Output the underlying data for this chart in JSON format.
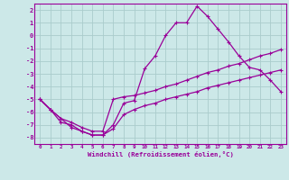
{
  "bg_color": "#cce8e8",
  "grid_color": "#aacccc",
  "line_color": "#990099",
  "xlabel": "Windchill (Refroidissement éolien,°C)",
  "x_ticks": [
    0,
    1,
    2,
    3,
    4,
    5,
    6,
    7,
    8,
    9,
    10,
    11,
    12,
    13,
    14,
    15,
    16,
    17,
    18,
    19,
    20,
    21,
    22,
    23
  ],
  "y_ticks": [
    -8,
    -7,
    -6,
    -5,
    -4,
    -3,
    -2,
    -1,
    0,
    1,
    2
  ],
  "xlim": [
    -0.5,
    23.5
  ],
  "ylim": [
    -8.5,
    2.5
  ],
  "series": [
    {
      "x": [
        0,
        1,
        2,
        3,
        4,
        5,
        6,
        7,
        8,
        9,
        10,
        11,
        12,
        13,
        14,
        15,
        16,
        17,
        18,
        19,
        20,
        21,
        22,
        23
      ],
      "y": [
        -5.0,
        -5.8,
        -6.5,
        -7.2,
        -7.5,
        -7.8,
        -7.8,
        -7.0,
        -5.3,
        -5.1,
        -2.6,
        -1.6,
        0.0,
        1.0,
        1.0,
        2.3,
        1.5,
        0.5,
        -0.5,
        -1.6,
        -2.5,
        -2.7,
        -3.5,
        -4.4
      ]
    },
    {
      "x": [
        0,
        1,
        2,
        3,
        4,
        5,
        6,
        7,
        8,
        9,
        10,
        11,
        12,
        13,
        14,
        15,
        16,
        17,
        18,
        19,
        20,
        21,
        22,
        23
      ],
      "y": [
        -5.0,
        -5.8,
        -6.5,
        -6.8,
        -7.2,
        -7.5,
        -7.5,
        -5.0,
        -4.8,
        -4.7,
        -4.5,
        -4.3,
        -4.0,
        -3.8,
        -3.5,
        -3.2,
        -2.9,
        -2.7,
        -2.4,
        -2.2,
        -1.9,
        -1.6,
        -1.4,
        -1.1
      ]
    },
    {
      "x": [
        0,
        1,
        2,
        3,
        4,
        5,
        6,
        7,
        8,
        9,
        10,
        11,
        12,
        13,
        14,
        15,
        16,
        17,
        18,
        19,
        20,
        21,
        22,
        23
      ],
      "y": [
        -5.0,
        -5.8,
        -6.8,
        -7.0,
        -7.5,
        -7.8,
        -7.8,
        -7.3,
        -6.2,
        -5.8,
        -5.5,
        -5.3,
        -5.0,
        -4.8,
        -4.6,
        -4.4,
        -4.1,
        -3.9,
        -3.7,
        -3.5,
        -3.3,
        -3.1,
        -2.9,
        -2.7
      ]
    }
  ],
  "figsize": [
    3.2,
    2.0
  ],
  "dpi": 100
}
